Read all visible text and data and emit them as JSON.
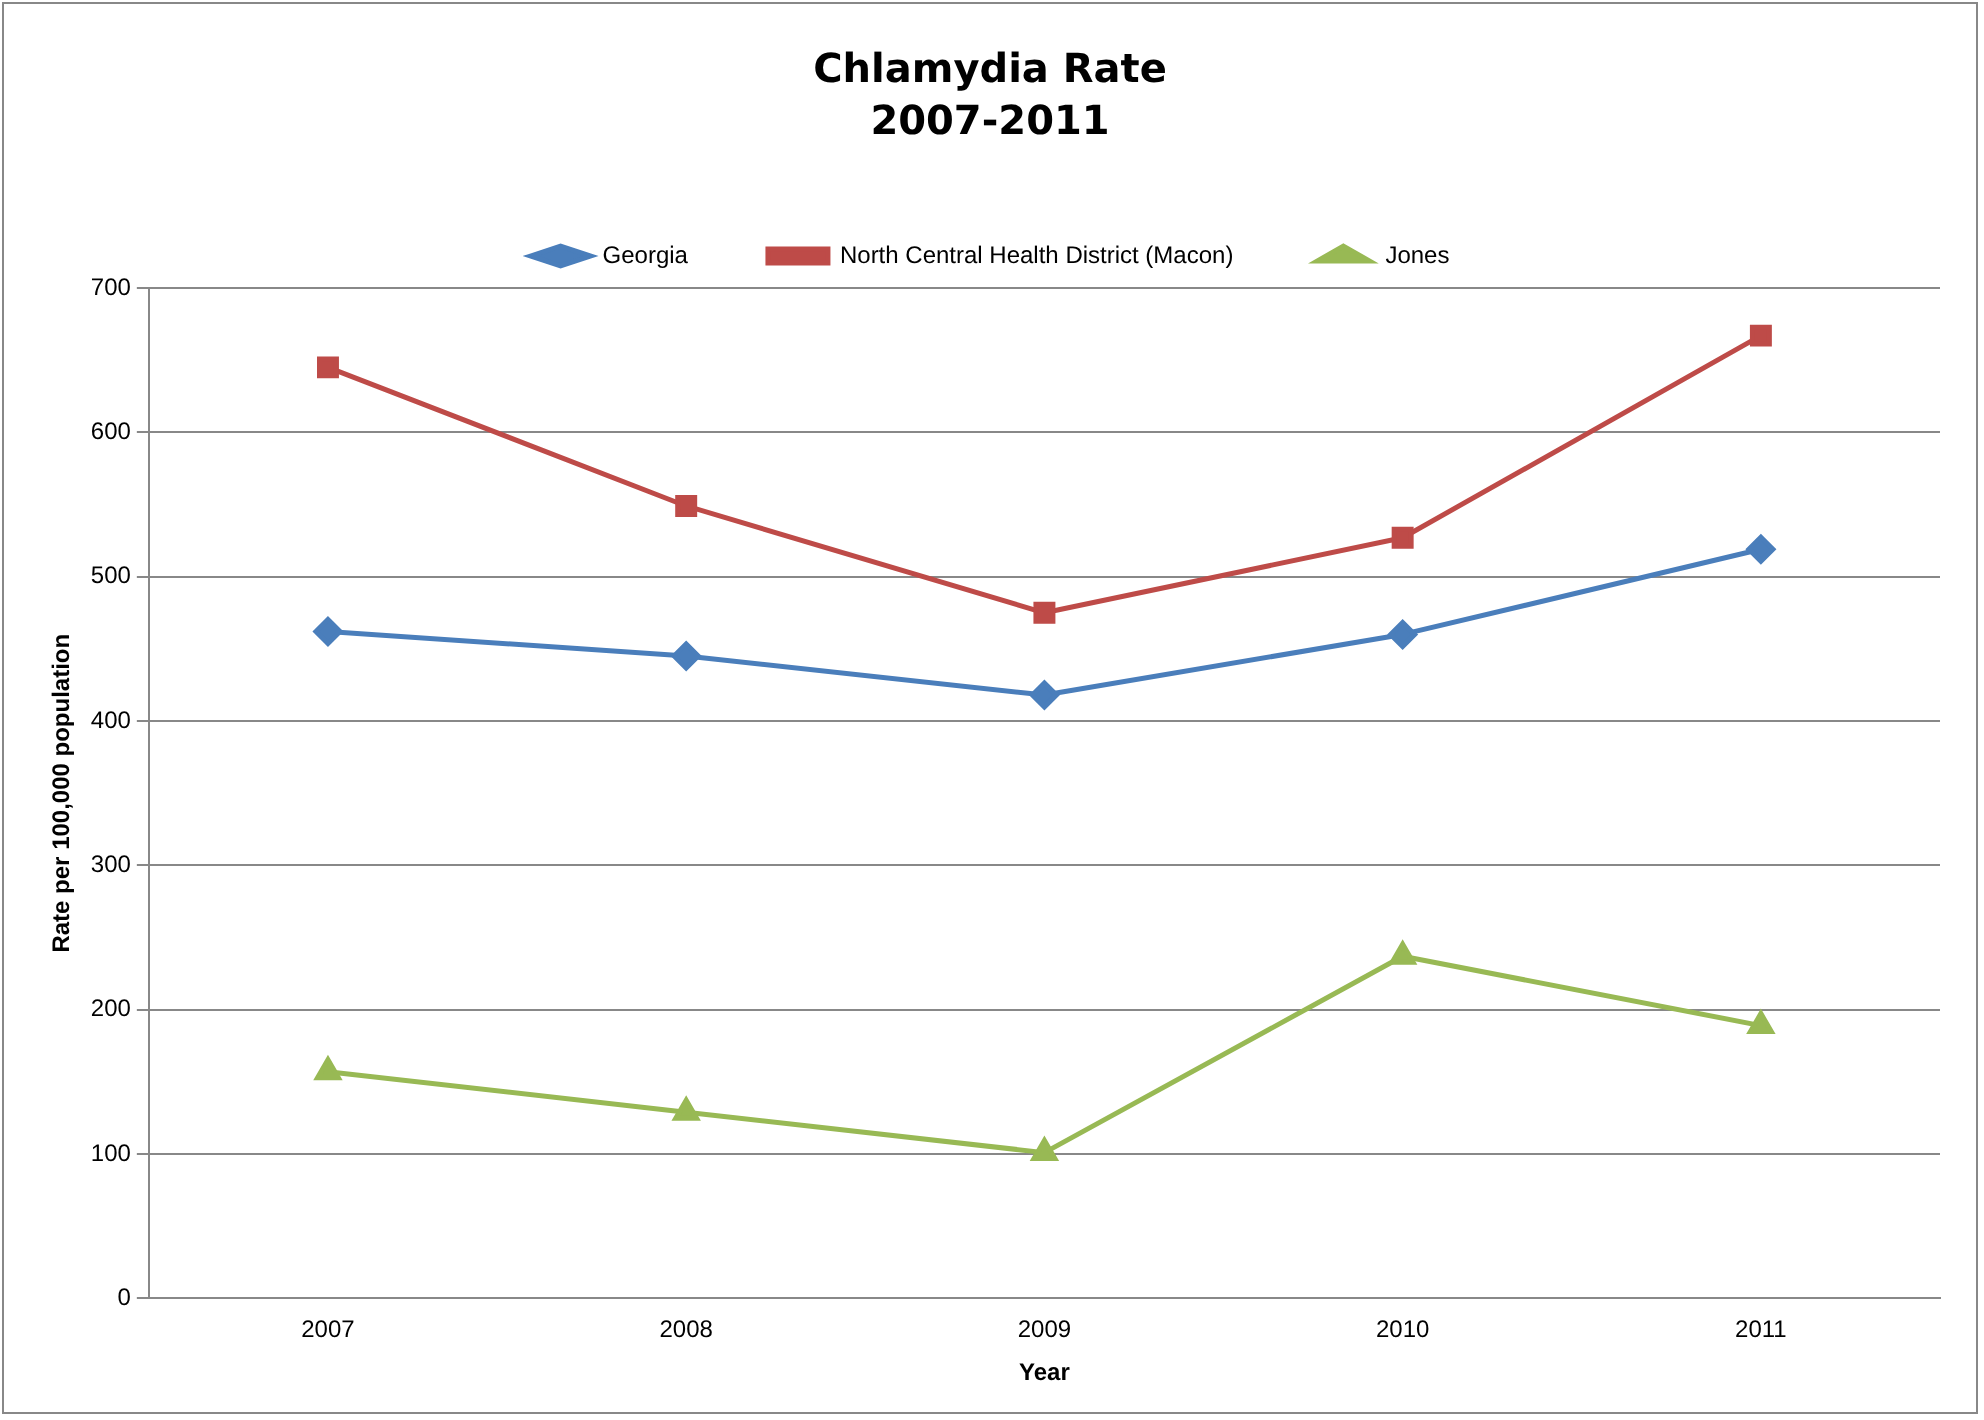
{
  "chart_data": {
    "type": "line",
    "title": "Chlamydia Rate",
    "subtitle": "2007-2011",
    "xlabel": "Year",
    "ylabel": "Rate per 100,000 population",
    "categories": [
      "2007",
      "2008",
      "2009",
      "2010",
      "2011"
    ],
    "series": [
      {
        "name": "Georgia",
        "color": "#4a7ebb",
        "marker": "diamond",
        "values": [
          462,
          445,
          418,
          460,
          519
        ]
      },
      {
        "name": "North Central Health District (Macon)",
        "color": "#be4b48",
        "marker": "square",
        "values": [
          645,
          549,
          475,
          527,
          667
        ]
      },
      {
        "name": "Jones",
        "color": "#98b954",
        "marker": "triangle",
        "values": [
          157,
          129,
          101,
          237,
          189
        ]
      }
    ],
    "ylim": [
      0,
      700
    ],
    "yticks": [
      0,
      100,
      200,
      300,
      400,
      500,
      600,
      700
    ],
    "grid": "y",
    "legend": "top",
    "line_style": "solid"
  }
}
